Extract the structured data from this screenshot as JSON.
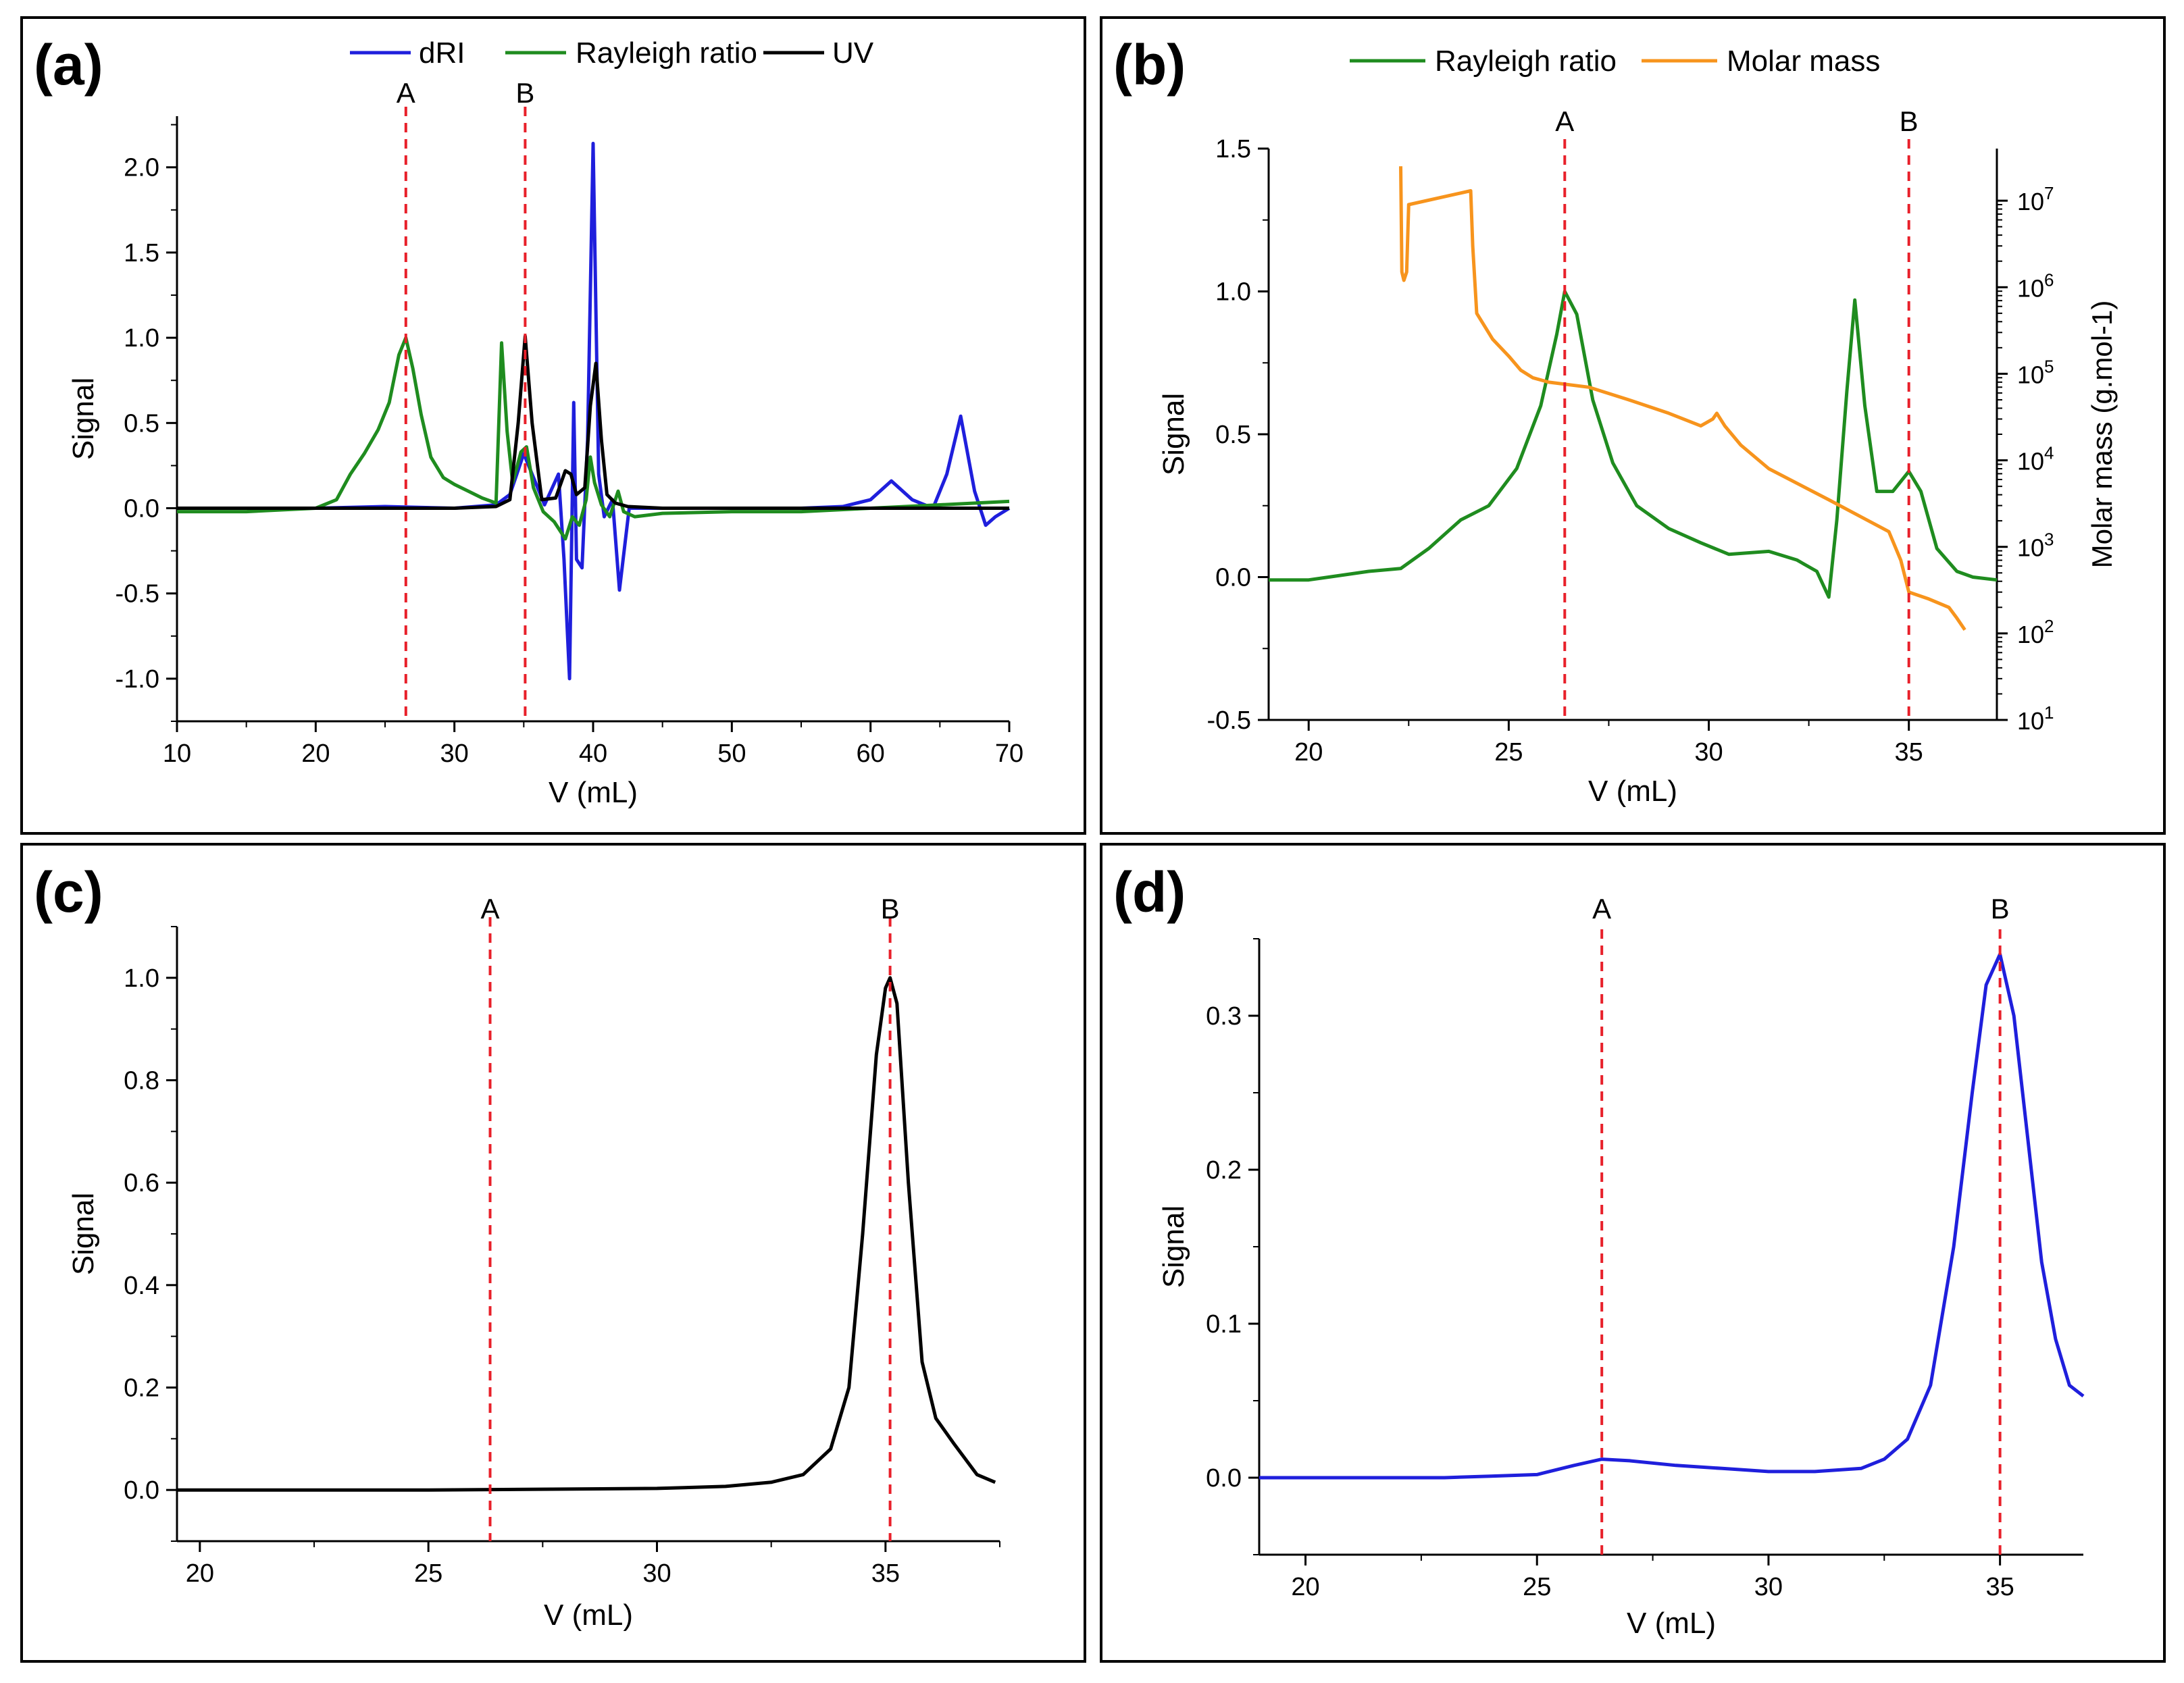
{
  "chart_data": [
    {
      "panel_label": "(a)",
      "type": "line",
      "xlabel": "V (mL)",
      "ylabel": "Signal",
      "xlim": [
        10,
        70
      ],
      "ylim": [
        -1.25,
        2.3
      ],
      "xticks": [
        10,
        20,
        30,
        40,
        50,
        60,
        70
      ],
      "xtick_labels": [
        "10",
        "20",
        "30",
        "40",
        "50",
        "60",
        "70"
      ],
      "yticks": [
        -1.0,
        -0.5,
        0.0,
        0.5,
        1.0,
        1.5,
        2.0
      ],
      "ytick_labels": [
        "-1.0",
        "-0.5",
        "0.0",
        "0.5",
        "1.0",
        "1.5",
        "2.0"
      ],
      "legend": "top",
      "markers": [
        {
          "label": "A",
          "x": 26.5
        },
        {
          "label": "B",
          "x": 35.1
        }
      ],
      "series": [
        {
          "name": "dRI",
          "color": "#1f1fdc",
          "x": [
            10,
            20,
            25,
            30,
            33,
            34,
            35,
            35.5,
            36.5,
            37.5,
            37.9,
            38.3,
            38.6,
            38.8,
            39.2,
            39.6,
            40.0,
            40.4,
            40.8,
            41.4,
            41.9,
            42.6,
            44,
            50,
            55,
            58,
            60,
            61.5,
            63,
            64.5,
            65.5,
            66.5,
            67.5,
            68.3,
            69,
            70
          ],
          "y": [
            0,
            0,
            0.01,
            0,
            0.02,
            0.08,
            0.32,
            0.22,
            0.02,
            0.2,
            -0.3,
            -1.0,
            0.62,
            -0.3,
            -0.35,
            0.4,
            2.14,
            0.2,
            -0.05,
            0.05,
            -0.48,
            0.0,
            0,
            0,
            0,
            0.01,
            0.05,
            0.16,
            0.05,
            0,
            0.2,
            0.54,
            0.1,
            -0.1,
            -0.05,
            0
          ]
        },
        {
          "name": "Rayleigh ratio",
          "color": "#1f8c1f",
          "x": [
            10,
            15,
            20,
            21.5,
            22.5,
            23.5,
            24.5,
            25.3,
            26.0,
            26.5,
            27.0,
            27.6,
            28.3,
            29.2,
            30,
            31,
            32,
            33,
            33.4,
            33.8,
            34.2,
            34.8,
            35.2,
            35.7,
            36.4,
            37.2,
            38,
            38.5,
            39,
            39.5,
            39.8,
            40.1,
            40.6,
            41.2,
            41.8,
            42.2,
            43,
            45,
            50,
            55,
            60,
            65,
            70
          ],
          "y": [
            -0.02,
            -0.02,
            0.0,
            0.05,
            0.2,
            0.32,
            0.46,
            0.62,
            0.9,
            1.0,
            0.82,
            0.55,
            0.3,
            0.18,
            0.14,
            0.1,
            0.06,
            0.03,
            0.97,
            0.45,
            0.15,
            0.33,
            0.36,
            0.12,
            -0.02,
            -0.08,
            -0.18,
            -0.05,
            -0.1,
            0.05,
            0.3,
            0.15,
            0.02,
            -0.05,
            0.1,
            -0.02,
            -0.05,
            -0.03,
            -0.02,
            -0.02,
            0.0,
            0.02,
            0.04
          ]
        },
        {
          "name": "UV",
          "color": "#000000",
          "x": [
            10,
            30,
            33,
            34,
            34.6,
            35.1,
            35.6,
            36.3,
            37.3,
            38.0,
            38.4,
            38.8,
            39.4,
            39.8,
            40.2,
            40.6,
            41.0,
            41.6,
            42.5,
            45,
            50,
            60,
            70
          ],
          "y": [
            0,
            0,
            0.01,
            0.05,
            0.5,
            1.01,
            0.5,
            0.05,
            0.06,
            0.22,
            0.2,
            0.08,
            0.12,
            0.6,
            0.85,
            0.4,
            0.08,
            0.03,
            0.01,
            0,
            0,
            0,
            0
          ]
        }
      ]
    },
    {
      "panel_label": "(b)",
      "type": "line",
      "xlabel": "V (mL)",
      "ylabel": "Signal",
      "ylabel_right": "Molar mass (g.mol-1)",
      "xlim": [
        19,
        37.2
      ],
      "ylim": [
        -0.5,
        1.5
      ],
      "y2_log_range": [
        10,
        40000000
      ],
      "xticks": [
        20,
        25,
        30,
        35
      ],
      "xtick_labels": [
        "20",
        "25",
        "30",
        "35"
      ],
      "yticks": [
        -0.5,
        0.0,
        0.5,
        1.0,
        1.5
      ],
      "ytick_labels": [
        "-0.5",
        "0.0",
        "0.5",
        "1.0",
        "1.5"
      ],
      "y2_ticks": [
        10,
        100,
        1000,
        10000,
        100000,
        1000000,
        10000000
      ],
      "y2_tick_labels": [
        {
          "base": "10",
          "exp": "1"
        },
        {
          "base": "10",
          "exp": "2"
        },
        {
          "base": "10",
          "exp": "3"
        },
        {
          "base": "10",
          "exp": "4"
        },
        {
          "base": "10",
          "exp": "5"
        },
        {
          "base": "10",
          "exp": "6"
        },
        {
          "base": "10",
          "exp": "7"
        }
      ],
      "legend": "top",
      "markers": [
        {
          "label": "A",
          "x": 26.4
        },
        {
          "label": "B",
          "x": 35.0
        }
      ],
      "series": [
        {
          "name": "Rayleigh ratio",
          "color": "#1f8c1f",
          "axis": "left",
          "x": [
            19,
            20,
            20.5,
            21.5,
            22.3,
            23,
            23.8,
            24.5,
            25.2,
            25.8,
            26.2,
            26.4,
            26.7,
            27.1,
            27.6,
            28.2,
            29,
            29.8,
            30.5,
            31.5,
            32.2,
            32.7,
            33.0,
            33.2,
            33.45,
            33.65,
            33.9,
            34.2,
            34.6,
            35.0,
            35.3,
            35.7,
            36.2,
            36.6,
            37.2
          ],
          "y": [
            -0.01,
            -0.01,
            0.0,
            0.02,
            0.03,
            0.1,
            0.2,
            0.25,
            0.38,
            0.6,
            0.85,
            1.0,
            0.92,
            0.62,
            0.4,
            0.25,
            0.17,
            0.12,
            0.08,
            0.09,
            0.06,
            0.02,
            -0.07,
            0.2,
            0.65,
            0.97,
            0.6,
            0.3,
            0.3,
            0.37,
            0.3,
            0.1,
            0.02,
            0.0,
            -0.01
          ]
        },
        {
          "name": "Molar mass",
          "color": "#f7941d",
          "axis": "right",
          "x": [
            22.3,
            22.33,
            22.38,
            22.45,
            22.5,
            24.05,
            24.1,
            24.2,
            24.6,
            25.0,
            25.3,
            25.6,
            26.0,
            27.0,
            28.0,
            29.0,
            29.8,
            30.1,
            30.2,
            30.4,
            30.8,
            31.5,
            33,
            34.5,
            34.8,
            35.0,
            35.5,
            36.0,
            36.2,
            36.4
          ],
          "y": [
            25000000,
            1500000,
            1200000,
            1500000,
            9000000,
            13000000,
            3000000,
            500000,
            250000,
            160000,
            110000,
            90000,
            80000,
            70000,
            50000,
            35000,
            25000,
            30000,
            35000,
            25000,
            15000,
            8000,
            3500,
            1500,
            700,
            300,
            250,
            200,
            150,
            110
          ]
        }
      ]
    },
    {
      "panel_label": "(c)",
      "type": "line",
      "xlabel": "V (mL)",
      "ylabel": "Signal",
      "xlim": [
        19.5,
        37.5
      ],
      "ylim": [
        -0.1,
        1.1
      ],
      "xticks": [
        20,
        25,
        30,
        35
      ],
      "xtick_labels": [
        "20",
        "25",
        "30",
        "35"
      ],
      "yticks": [
        0.0,
        0.2,
        0.4,
        0.6,
        0.8,
        1.0
      ],
      "ytick_labels": [
        "0.0",
        "0.2",
        "0.4",
        "0.6",
        "0.8",
        "1.0"
      ],
      "markers": [
        {
          "label": "A",
          "x": 26.35
        },
        {
          "label": "B",
          "x": 35.1
        }
      ],
      "series": [
        {
          "name": "UV",
          "color": "#000000",
          "x": [
            19.5,
            25,
            30,
            31.5,
            32.5,
            33.2,
            33.8,
            34.2,
            34.5,
            34.8,
            35.0,
            35.1,
            35.25,
            35.5,
            35.8,
            36.1,
            36.5,
            37.0,
            37.4
          ],
          "y": [
            0,
            0,
            0.003,
            0.007,
            0.015,
            0.03,
            0.08,
            0.2,
            0.5,
            0.85,
            0.98,
            1.0,
            0.95,
            0.6,
            0.25,
            0.14,
            0.09,
            0.03,
            0.015
          ]
        }
      ]
    },
    {
      "panel_label": "(d)",
      "type": "line",
      "xlabel": "V (mL)",
      "ylabel": "Signal",
      "xlim": [
        19,
        36.8
      ],
      "ylim": [
        -0.05,
        0.35
      ],
      "xticks": [
        20,
        25,
        30,
        35
      ],
      "xtick_labels": [
        "20",
        "25",
        "30",
        "35"
      ],
      "yticks": [
        0.0,
        0.1,
        0.2,
        0.3
      ],
      "ytick_labels": [
        "0.0",
        "0.1",
        "0.2",
        "0.3"
      ],
      "markers": [
        {
          "label": "A",
          "x": 26.4
        },
        {
          "label": "B",
          "x": 35.0
        }
      ],
      "series": [
        {
          "name": "dRI",
          "color": "#1f1fdc",
          "x": [
            19,
            20,
            21,
            22,
            23,
            24,
            25,
            25.8,
            26.4,
            27,
            28,
            29,
            30,
            31,
            32,
            32.5,
            33,
            33.5,
            34,
            34.4,
            34.7,
            35.0,
            35.3,
            35.6,
            35.9,
            36.2,
            36.5,
            36.8
          ],
          "y": [
            0,
            0,
            0,
            0,
            0,
            0.001,
            0.002,
            0.008,
            0.012,
            0.011,
            0.008,
            0.006,
            0.004,
            0.004,
            0.006,
            0.012,
            0.025,
            0.06,
            0.15,
            0.25,
            0.32,
            0.34,
            0.3,
            0.22,
            0.14,
            0.09,
            0.06,
            0.053
          ]
        }
      ]
    }
  ]
}
